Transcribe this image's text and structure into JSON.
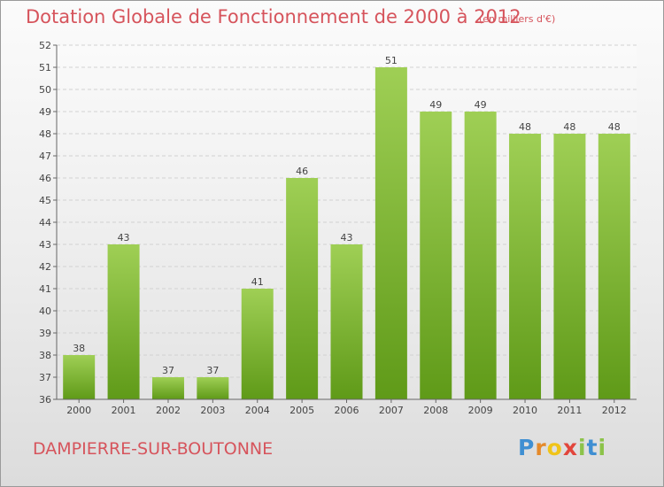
{
  "header": {
    "title": "Dotation Globale de Fonctionnement de 2000 à 2012",
    "unit": "(en milliers d'€)"
  },
  "footer": {
    "commune": "DAMPIERRE-SUR-BOUTONNE",
    "brand": "Proxiti"
  },
  "colors": {
    "bar_top": "#9fcf55",
    "bar_bottom": "#5f9a18",
    "title_red": "#d6545c"
  },
  "chart_data": {
    "type": "bar",
    "title": "Dotation Globale de Fonctionnement de 2000 à 2012",
    "unit": "(en milliers d'€)",
    "xlabel": "",
    "ylabel": "",
    "categories": [
      "2000",
      "2001",
      "2002",
      "2003",
      "2004",
      "2005",
      "2006",
      "2007",
      "2008",
      "2009",
      "2010",
      "2011",
      "2012"
    ],
    "values": [
      38,
      43,
      37,
      37,
      41,
      46,
      43,
      51,
      49,
      49,
      48,
      48,
      48
    ],
    "ylim": [
      36,
      52
    ],
    "yticks": [
      36,
      37,
      38,
      39,
      40,
      41,
      42,
      43,
      44,
      45,
      46,
      47,
      48,
      49,
      50,
      51,
      52
    ],
    "grid": true
  }
}
